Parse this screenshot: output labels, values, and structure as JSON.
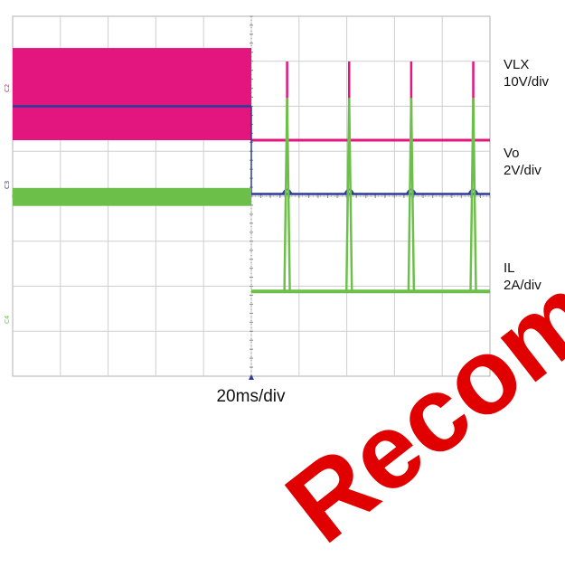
{
  "chart_data": {
    "type": "line",
    "title": "",
    "xlabel": "20ms/div",
    "x_range_ms": [
      0,
      200
    ],
    "grid": {
      "divisions_x": 10,
      "divisions_y": 8,
      "on": true
    },
    "trigger_time_ms": 100,
    "series": [
      {
        "name": "VLX",
        "scale": "10V/div",
        "color": "#e3167f",
        "marker": "C2",
        "description_segments": [
          {
            "from_ms": 0,
            "to_ms": 100,
            "mode": "switching",
            "high_div": 4.2,
            "low_div": 2.15
          },
          {
            "from_ms": 100,
            "to_ms": 200,
            "mode": "idle",
            "level_div": 2.15
          }
        ],
        "spikes_ms": [
          115,
          141,
          167,
          193
        ],
        "spike_peak_div": 3.9
      },
      {
        "name": "Vo",
        "scale": "2V/div",
        "color": "#2b3a9b",
        "marker": "C3",
        "segments": [
          {
            "from_ms": 0,
            "to_ms": 100,
            "level_div": 1.9
          },
          {
            "from_ms": 100,
            "to_ms": 200,
            "level_div": -0.05
          }
        ],
        "ripple_ms": [
          115,
          141,
          167,
          193
        ]
      },
      {
        "name": "IL",
        "scale": "2A/div",
        "color": "#6cc04a",
        "marker": "C4",
        "segments": [
          {
            "from_ms": 0,
            "to_ms": 100,
            "mode": "band",
            "high_div": 3.3,
            "low_div": 2.9
          },
          {
            "from_ms": 100,
            "to_ms": 200,
            "mode": "flat",
            "level_div": 1.0
          }
        ],
        "spikes_ms": [
          115,
          141,
          167,
          193
        ],
        "spike_peak_div": 5.3
      }
    ],
    "labels": {
      "vlx": [
        "VLX",
        "10V/div"
      ],
      "vo": [
        "Vo",
        "2V/div"
      ],
      "il": [
        "IL",
        "2A/div"
      ]
    }
  },
  "watermark": "Recommended"
}
